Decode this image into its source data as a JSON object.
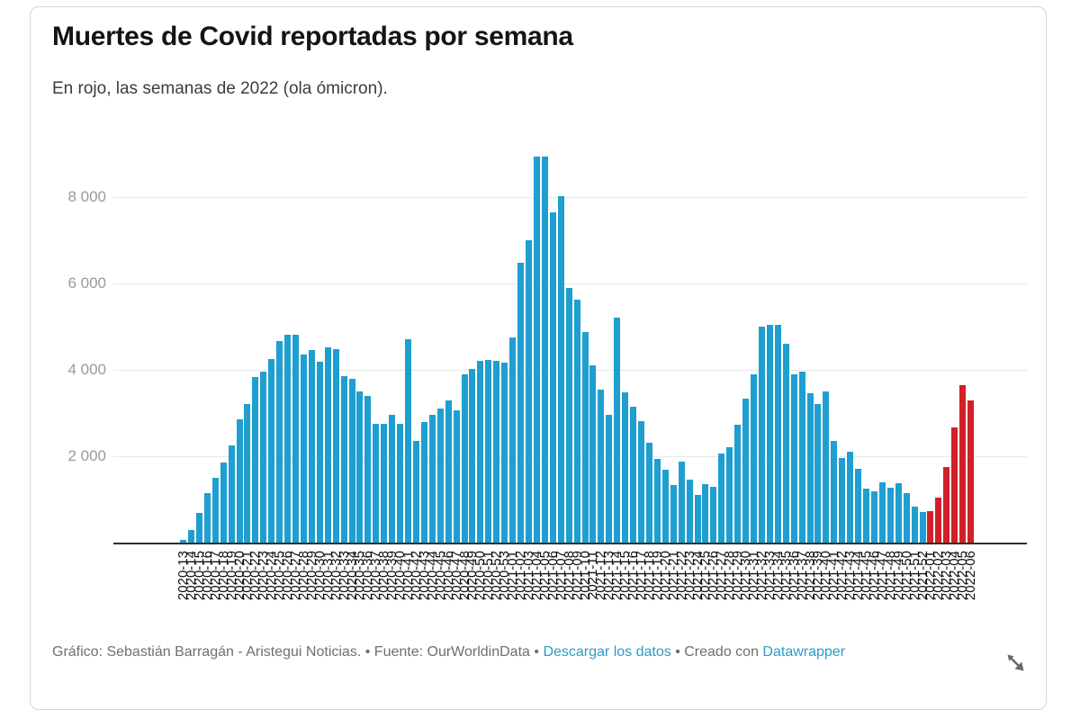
{
  "card": {
    "title": "Muertes de Covid reportadas por semana",
    "subtitle": "En rojo, las semanas de 2022 (ola ómicron)."
  },
  "chart_data": {
    "type": "bar",
    "title": "Muertes de Covid reportadas por semana",
    "subtitle": "En rojo, las semanas de 2022 (ola ómicron).",
    "xlabel": "",
    "ylabel": "",
    "ylim": [
      0,
      9000
    ],
    "grid": "horizontal",
    "legend": "none",
    "bar_color_default": "#1E9FD0",
    "bar_color_highlight": "#D21F28",
    "highlight_prefix": "2022",
    "yticks": [
      {
        "value": 2000,
        "label": "2 000"
      },
      {
        "value": 4000,
        "label": "4 000"
      },
      {
        "value": 6000,
        "label": "6 000"
      },
      {
        "value": 8000,
        "label": "8 000"
      }
    ],
    "categories": [
      "2020-13",
      "2020-14",
      "2020-15",
      "2020-16",
      "2020-17",
      "2020-18",
      "2020-19",
      "2020-20",
      "2020-21",
      "2020-22",
      "2020-23",
      "2020-24",
      "2020-25",
      "2020-26",
      "2020-27",
      "2020-28",
      "2020-29",
      "2020-30",
      "2020-31",
      "2020-32",
      "2020-33",
      "2020-34",
      "2020-35",
      "2020-36",
      "2020-37",
      "2020-38",
      "2020-39",
      "2020-40",
      "2020-41",
      "2020-42",
      "2020-43",
      "2020-44",
      "2020-45",
      "2020-46",
      "2020-47",
      "2020-48",
      "2020-49",
      "2020-50",
      "2020-51",
      "2020-52",
      "2020-53",
      "2021-01",
      "2021-02",
      "2021-03",
      "2021-04",
      "2021-05",
      "2021-06",
      "2021-07",
      "2021-08",
      "2021-09",
      "2021-10",
      "2021-11",
      "2021-12",
      "2021-13",
      "2021-14",
      "2021-15",
      "2021-16",
      "2021-17",
      "2021-18",
      "2021-19",
      "2021-20",
      "2021-21",
      "2021-22",
      "2021-23",
      "2021-24",
      "2021-25",
      "2021-26",
      "2021-27",
      "2021-28",
      "2021-29",
      "2021-30",
      "2021-31",
      "2021-32",
      "2021-33",
      "2021-34",
      "2021-35",
      "2021-36",
      "2021-37",
      "2021-38",
      "2021-39",
      "2021-40",
      "2021-41",
      "2021-42",
      "2021-43",
      "2021-44",
      "2021-45",
      "2021-46",
      "2021-47",
      "2021-48",
      "2021-49",
      "2021-50",
      "2021-51",
      "2021-52",
      "2022-01",
      "2022-02",
      "2022-03",
      "2022-04",
      "2022-05",
      "2022-06"
    ],
    "values": [
      60,
      290,
      690,
      1150,
      1500,
      1850,
      2250,
      2850,
      3210,
      3840,
      3950,
      4250,
      4670,
      4820,
      4820,
      4350,
      4450,
      4180,
      4530,
      4470,
      3850,
      3800,
      3500,
      3400,
      2750,
      2750,
      2950,
      2750,
      4700,
      2350,
      2800,
      2950,
      3100,
      3300,
      3060,
      3900,
      4030,
      4200,
      4220,
      4210,
      4170,
      4750,
      6470,
      7000,
      8930,
      8930,
      7650,
      8030,
      5900,
      5620,
      4880,
      4100,
      3550,
      2950,
      5200,
      3480,
      3150,
      2820,
      2320,
      1940,
      1690,
      1340,
      1870,
      1450,
      1100,
      1350,
      1300,
      2070,
      2210,
      2730,
      3340,
      3900,
      5000,
      5050,
      5050,
      4600,
      3900,
      3950,
      3450,
      3200,
      3500,
      2350,
      1950,
      2100,
      1700,
      1250,
      1190,
      1390,
      1270,
      1370,
      1150,
      830,
      700,
      720,
      1050,
      1750,
      2660,
      3640,
      3290
    ]
  },
  "footer": {
    "credit": "Gráfico: Sebastián Barragán - Aristegui Noticias.",
    "bullet": "•",
    "source_text": "Fuente: OurWorldinData",
    "download_label": "Descargar los datos",
    "created_text": "Creado con",
    "tool_label": "Datawrapper",
    "link_color": "#2D9CC5",
    "text_color": "#6f6f6f"
  }
}
